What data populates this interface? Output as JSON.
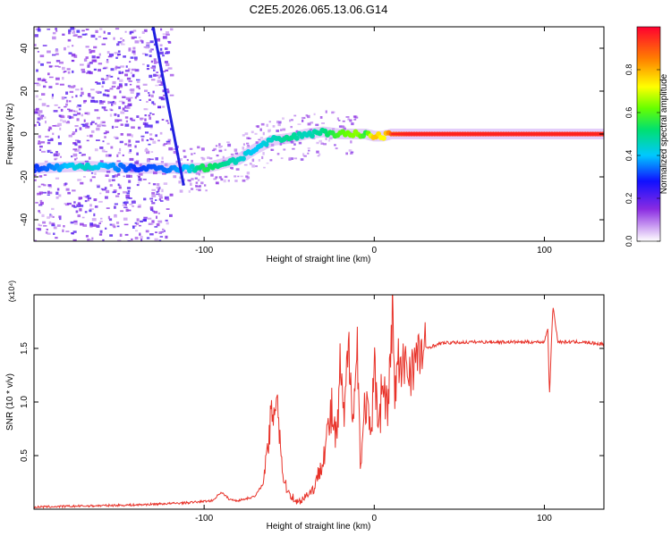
{
  "title": "C2E5.2026.065.13.06.G14",
  "chart_data": [
    {
      "type": "heatmap",
      "xlabel": "Height of straight line (km)",
      "ylabel": "Frequency (Hz)",
      "xlim": [
        -200,
        135
      ],
      "ylim": [
        -50,
        50
      ],
      "xticks": [
        -100,
        0,
        100
      ],
      "yticks": [
        -40,
        -20,
        0,
        20,
        40
      ],
      "colorbar": {
        "label": "Normalized spectral amplitude",
        "range": [
          0.0,
          1.0
        ],
        "ticks": [
          0.0,
          0.2,
          0.4,
          0.6,
          0.8
        ],
        "tick_labels": [
          "0.0",
          "0.2",
          "0.4",
          "0.6",
          "0.8"
        ]
      },
      "ridge": {
        "x": [
          -200,
          -170,
          -140,
          -120,
          -110,
          -100,
          -90,
          -80,
          -70,
          -60,
          -50,
          -40,
          -30,
          -20,
          -10,
          -5,
          0,
          5,
          10,
          20,
          40,
          60,
          80,
          100,
          120,
          135
        ],
        "y": [
          -16,
          -15,
          -16,
          -16,
          -16,
          -16,
          -14,
          -12,
          -7,
          -3,
          -2,
          0,
          1,
          0,
          0,
          0,
          -1,
          -1,
          0,
          0,
          0,
          0,
          0,
          0,
          0,
          0
        ],
        "amplitude": [
          0.3,
          0.45,
          0.3,
          0.35,
          0.4,
          0.55,
          0.5,
          0.45,
          0.4,
          0.45,
          0.5,
          0.45,
          0.5,
          0.6,
          0.65,
          0.55,
          0.8,
          0.7,
          0.9,
          0.95,
          0.95,
          0.95,
          0.95,
          0.95,
          0.95,
          0.95
        ]
      },
      "streak": {
        "x": [
          -130,
          -112
        ],
        "y": [
          50,
          -24
        ]
      }
    },
    {
      "type": "line",
      "xlabel": "Height of straight line (km)",
      "ylabel": "SNR (10 * v/v)",
      "y_multiplier": "(x10⁴)",
      "xlim": [
        -200,
        135
      ],
      "ylim": [
        0,
        2.0
      ],
      "xticks": [
        -100,
        0,
        100
      ],
      "yticks": [
        0.5,
        1.0,
        1.5
      ],
      "ytick_labels": [
        "0.5",
        "1.0",
        "1.5"
      ],
      "color": "#e8332a",
      "series": [
        {
          "name": "SNR",
          "x": [
            -200,
            -170,
            -140,
            -110,
            -95,
            -90,
            -85,
            -80,
            -70,
            -65,
            -60,
            -57,
            -55,
            -53,
            -50,
            -45,
            -35,
            -30,
            -25,
            -22,
            -20,
            -18,
            -15,
            -12,
            -10,
            -8,
            -5,
            -2,
            0,
            3,
            5,
            8,
            10,
            11,
            12,
            14,
            16,
            18,
            20,
            25,
            30,
            40,
            60,
            80,
            100,
            102,
            103,
            105,
            108,
            120,
            135
          ],
          "y": [
            0.02,
            0.03,
            0.04,
            0.06,
            0.08,
            0.16,
            0.09,
            0.08,
            0.12,
            0.25,
            0.9,
            1.1,
            0.55,
            0.25,
            0.15,
            0.06,
            0.2,
            0.5,
            0.9,
            0.6,
            1.35,
            0.8,
            1.5,
            0.9,
            1.55,
            0.4,
            1.05,
            0.6,
            1.3,
            0.85,
            1.2,
            0.9,
            1.55,
            2.0,
            1.0,
            1.4,
            1.2,
            1.4,
            1.3,
            1.4,
            1.5,
            1.55,
            1.56,
            1.56,
            1.56,
            1.7,
            1.05,
            1.9,
            1.56,
            1.56,
            1.54
          ]
        }
      ]
    }
  ]
}
